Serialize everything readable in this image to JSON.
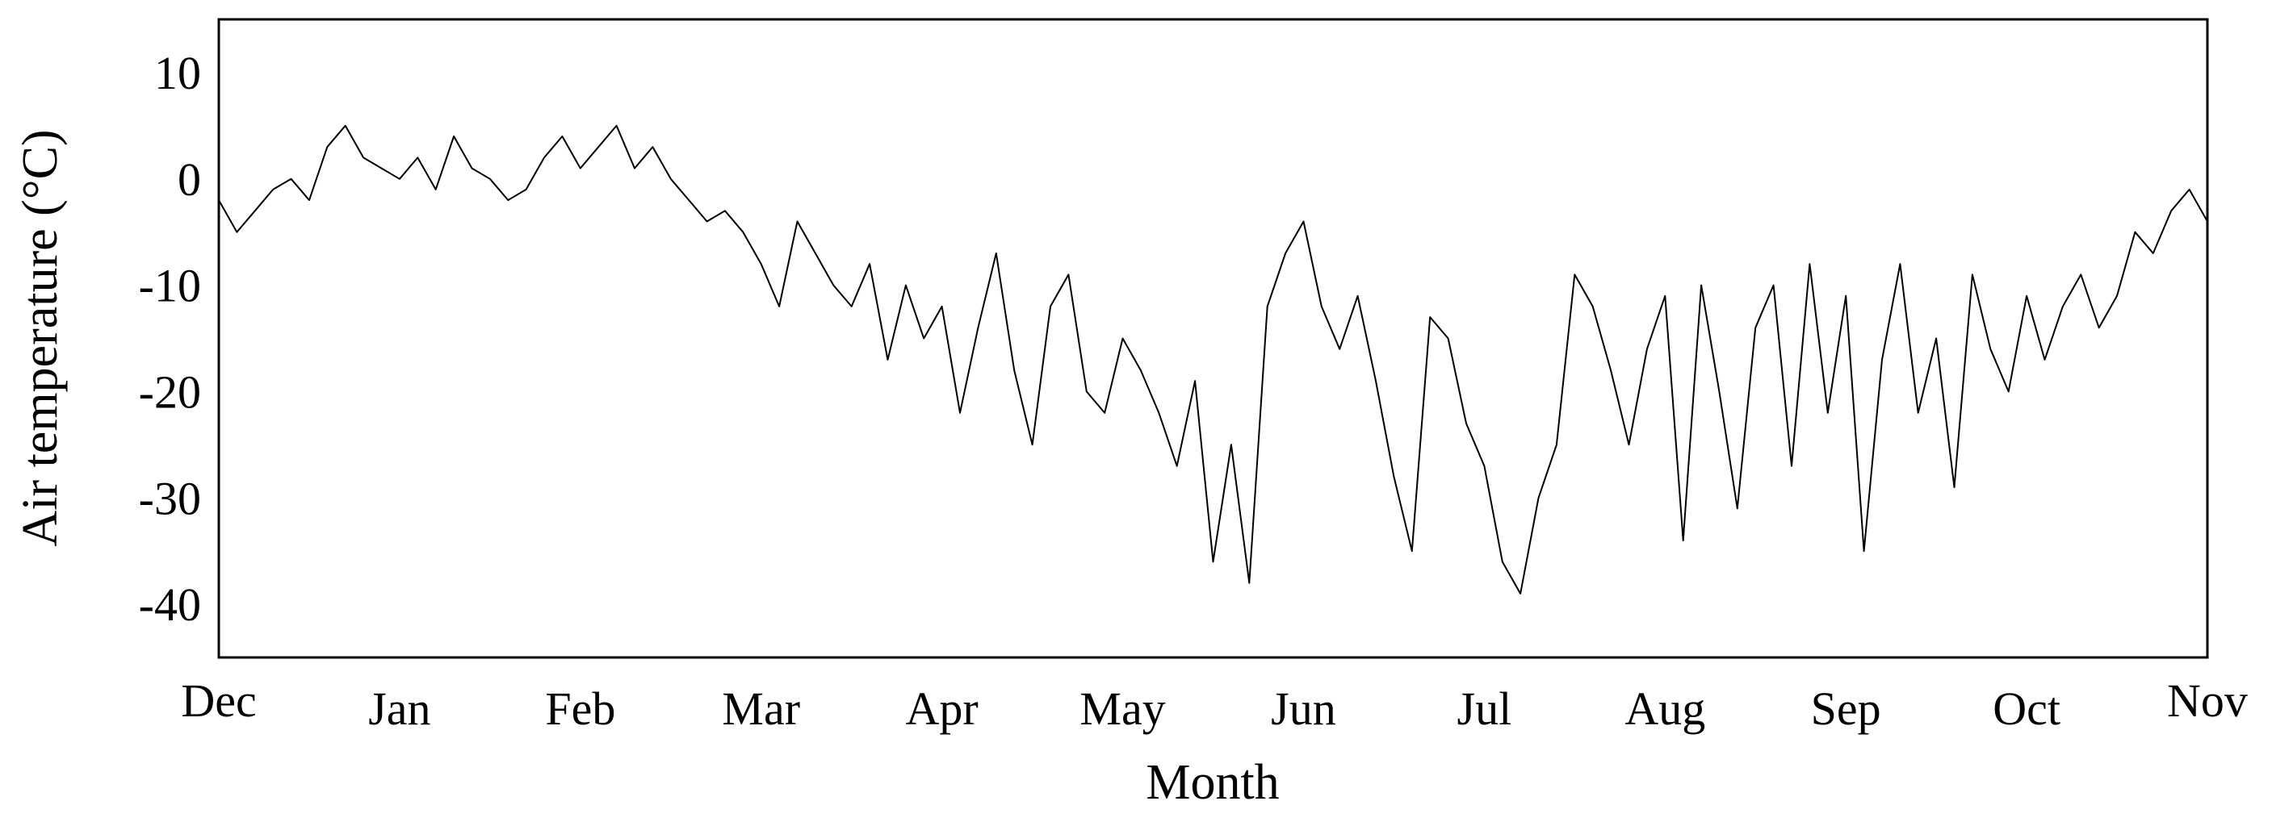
{
  "chart_data": {
    "type": "line",
    "xlabel": "Month",
    "ylabel": "Air temperature (°C)",
    "x_categories": [
      "Dec",
      "Jan",
      "Feb",
      "Mar",
      "Apr",
      "May",
      "Jun",
      "Jul",
      "Aug",
      "Sep",
      "Oct",
      "Nov"
    ],
    "x_range": [
      0,
      11
    ],
    "ylim": [
      -45,
      15
    ],
    "yticks": [
      10,
      0,
      -10,
      -20,
      -30,
      -40
    ],
    "grid": false,
    "series": [
      {
        "color": "#000000",
        "x": [
          0,
          0.1,
          0.2,
          0.3,
          0.4,
          0.5,
          0.6,
          0.7,
          0.8,
          0.9,
          1.0,
          1.1,
          1.2,
          1.3,
          1.4,
          1.5,
          1.6,
          1.7,
          1.8,
          1.9,
          2.0,
          2.1,
          2.2,
          2.3,
          2.4,
          2.5,
          2.6,
          2.7,
          2.8,
          2.9,
          3.0,
          3.1,
          3.2,
          3.3,
          3.4,
          3.5,
          3.6,
          3.7,
          3.8,
          3.9,
          4.0,
          4.1,
          4.2,
          4.3,
          4.4,
          4.5,
          4.6,
          4.7,
          4.8,
          4.9,
          5.0,
          5.1,
          5.2,
          5.3,
          5.4,
          5.5,
          5.6,
          5.7,
          5.8,
          5.9,
          6.0,
          6.1,
          6.2,
          6.3,
          6.4,
          6.5,
          6.6,
          6.7,
          6.8,
          6.9,
          7.0,
          7.1,
          7.2,
          7.3,
          7.4,
          7.5,
          7.6,
          7.7,
          7.8,
          7.9,
          8.0,
          8.1,
          8.2,
          8.3,
          8.4,
          8.5,
          8.6,
          8.7,
          8.8,
          8.9,
          9.0,
          9.1,
          9.2,
          9.3,
          9.4,
          9.5,
          9.6,
          9.7,
          9.8,
          9.9,
          10.0,
          10.1,
          10.2,
          10.3,
          10.4,
          10.5,
          10.6,
          10.7,
          10.8,
          10.9,
          11.0
        ],
        "y": [
          -2,
          -5,
          -3,
          -1,
          0,
          -2,
          3,
          5,
          2,
          1,
          0,
          2,
          -1,
          4,
          1,
          0,
          -2,
          -1,
          2,
          4,
          1,
          3,
          5,
          1,
          3,
          0,
          -2,
          -4,
          -3,
          -5,
          -8,
          -12,
          -4,
          -7,
          -10,
          -12,
          -8,
          -17,
          -10,
          -15,
          -12,
          -22,
          -14,
          -7,
          -18,
          -25,
          -12,
          -9,
          -20,
          -22,
          -15,
          -18,
          -22,
          -27,
          -19,
          -36,
          -25,
          -38,
          -12,
          -7,
          -4,
          -12,
          -16,
          -11,
          -19,
          -28,
          -35,
          -13,
          -15,
          -23,
          -27,
          -36,
          -39,
          -30,
          -25,
          -9,
          -12,
          -18,
          -25,
          -16,
          -11,
          -34,
          -10,
          -20,
          -31,
          -14,
          -10,
          -27,
          -8,
          -22,
          -11,
          -35,
          -17,
          -8,
          -22,
          -15,
          -29,
          -9,
          -16,
          -20,
          -11,
          -17,
          -12,
          -9,
          -14,
          -11,
          -5,
          -7,
          -3,
          -1,
          -4
        ]
      }
    ]
  }
}
